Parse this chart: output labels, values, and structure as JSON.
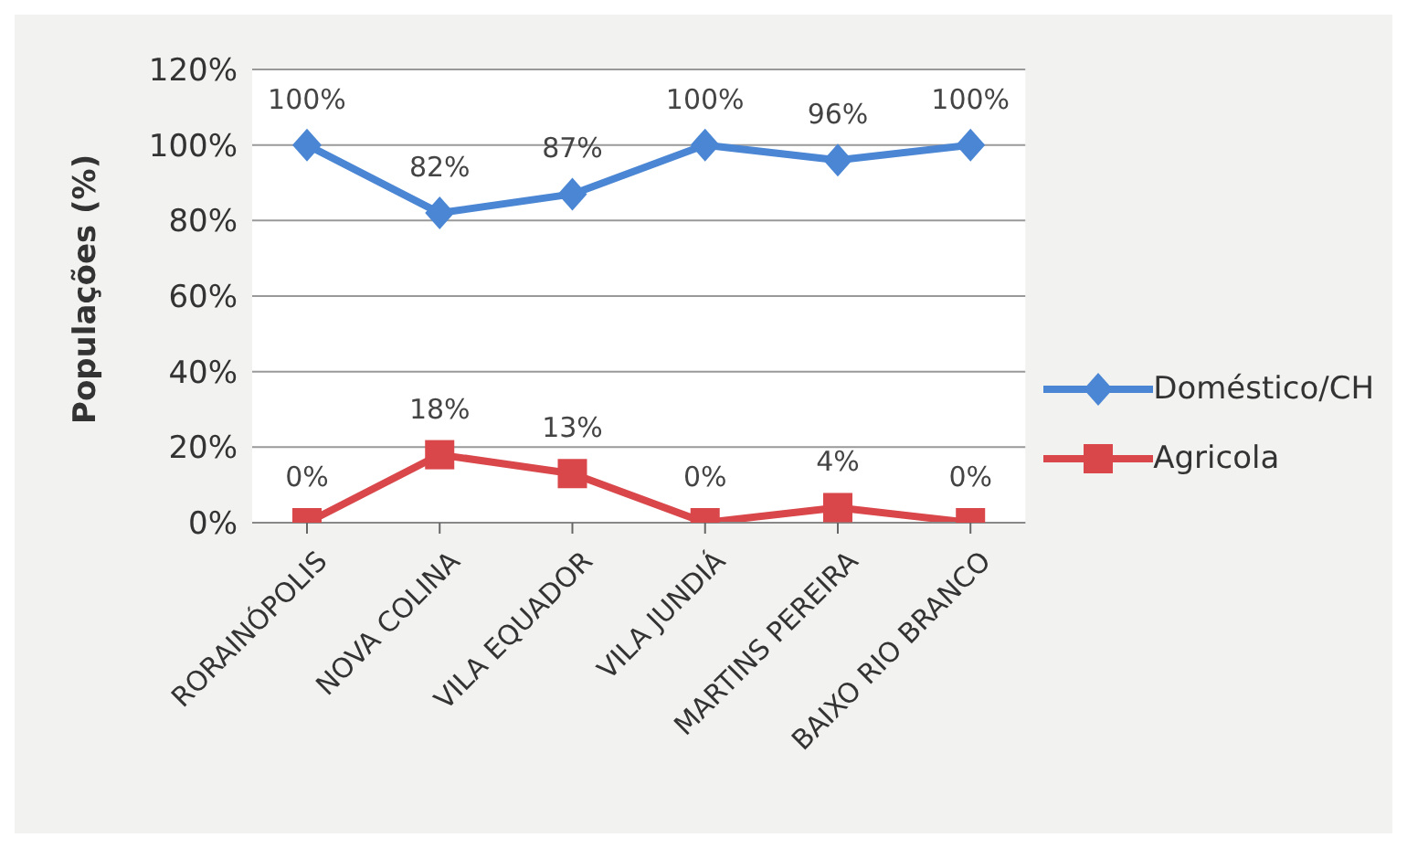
{
  "chart_data": {
    "type": "line",
    "ylabel": "Populações (%)",
    "categories": [
      "RORAINÓPOLIS",
      "NOVA COLINA",
      "VILA EQUADOR",
      "VILA JUNDIÁ",
      "MARTINS PEREIRA",
      "BAIXO RIO BRANCO"
    ],
    "series": [
      {
        "name": "Doméstico/CH",
        "color": "#4a86d4",
        "marker": "diamond",
        "values": [
          100,
          82,
          87,
          100,
          96,
          100
        ],
        "value_labels": [
          "100%",
          "82%",
          "87%",
          "100%",
          "96%",
          "100%"
        ]
      },
      {
        "name": "Agricola",
        "color": "#d9474a",
        "marker": "square",
        "values": [
          0,
          18,
          13,
          0,
          4,
          0
        ],
        "value_labels": [
          "0%",
          "18%",
          "13%",
          "0%",
          "4%",
          "0%"
        ]
      }
    ],
    "ylim": [
      0,
      120
    ],
    "yticks": [
      {
        "value": 0,
        "label": "0%"
      },
      {
        "value": 20,
        "label": "20%"
      },
      {
        "value": 40,
        "label": "40%"
      },
      {
        "value": 60,
        "label": "60%"
      },
      {
        "value": 80,
        "label": "80%"
      },
      {
        "value": 100,
        "label": "100%"
      },
      {
        "value": 120,
        "label": "120%"
      }
    ],
    "grid": "y",
    "legend": "right"
  }
}
